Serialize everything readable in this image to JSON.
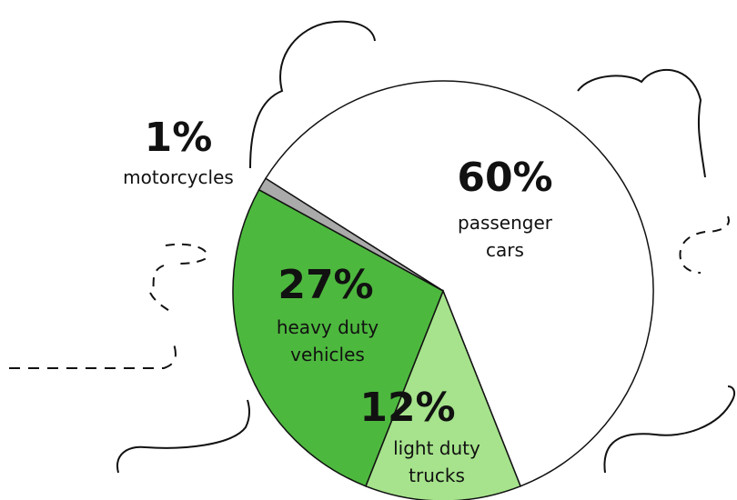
{
  "chart_data": {
    "type": "pie",
    "categories": [
      "passenger cars",
      "light duty trucks",
      "heavy duty vehicles",
      "motorcycles"
    ],
    "values": [
      60,
      12,
      27,
      1
    ],
    "value_labels": [
      "60%",
      "12%",
      "27%",
      "1%"
    ],
    "colors": [
      "#ffffff",
      "#a6e38c",
      "#4db83e",
      "#aaaaaa"
    ]
  }
}
